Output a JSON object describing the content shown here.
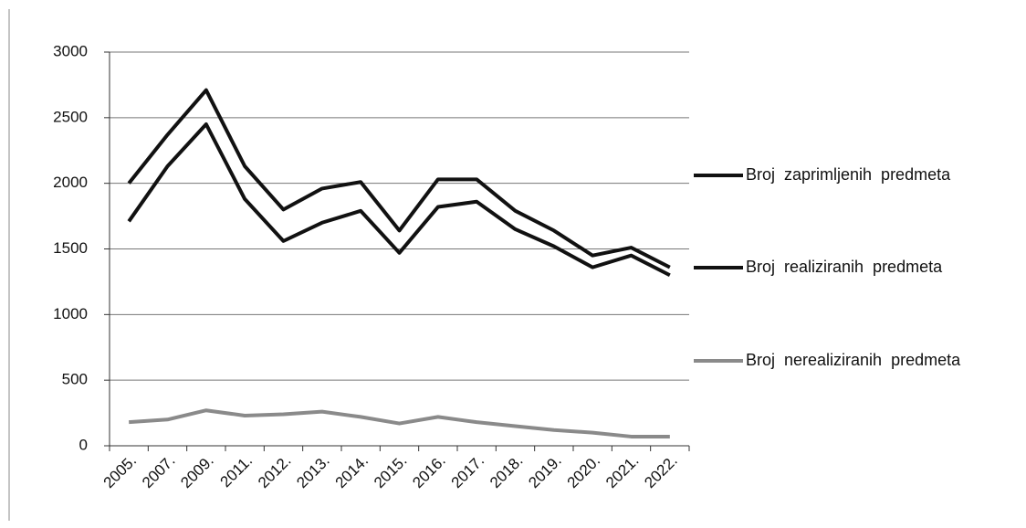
{
  "chart_data": {
    "type": "line",
    "categories": [
      "2005.",
      "2007.",
      "2009.",
      "2011.",
      "2012.",
      "2013.",
      "2014.",
      "2015.",
      "2016.",
      "2017.",
      "2018.",
      "2019.",
      "2020.",
      "2021.",
      "2022."
    ],
    "series": [
      {
        "name": "Broj  zaprimljenih  predmeta",
        "color": "#111111",
        "values": [
          2000,
          2370,
          2710,
          2130,
          1800,
          1960,
          2010,
          1640,
          2030,
          2030,
          1790,
          1640,
          1450,
          1510,
          1360
        ]
      },
      {
        "name": "Broj  realiziranih  predmeta",
        "color": "#111111",
        "values": [
          1710,
          2130,
          2450,
          1880,
          1560,
          1700,
          1790,
          1470,
          1820,
          1860,
          1650,
          1520,
          1360,
          1450,
          1300
        ]
      },
      {
        "name": "Broj  nerealiziranih  predmeta",
        "color": "#8a8a8a",
        "values": [
          180,
          200,
          270,
          230,
          240,
          260,
          220,
          170,
          220,
          180,
          150,
          120,
          100,
          70,
          70
        ]
      }
    ],
    "ylim": [
      0,
      3000
    ],
    "yticks": [
      0,
      500,
      1000,
      1500,
      2000,
      2500,
      3000
    ],
    "grid": true
  }
}
